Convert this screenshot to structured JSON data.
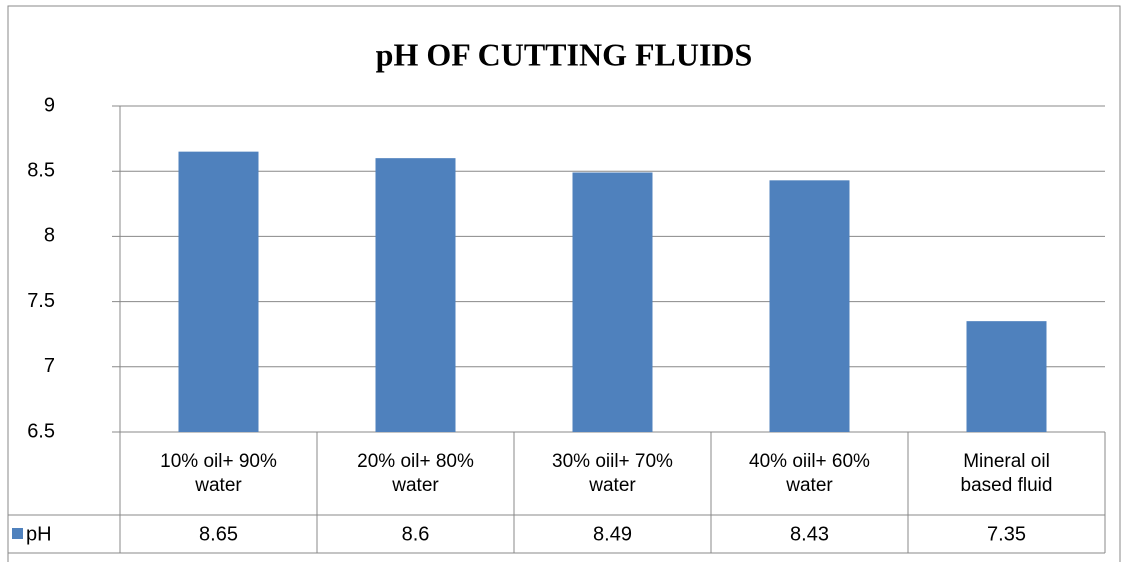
{
  "chart_data": {
    "type": "bar",
    "title": "pH OF  CUTTING FLUIDS",
    "categories": [
      "10% oil+ 90% water",
      "20% oil+ 80% water",
      "30% oiil+ 70% water",
      "40% oiil+ 60% water",
      "Mineral oil based fluid"
    ],
    "series": [
      {
        "name": "pH",
        "color": "#4f81bd",
        "values": [
          8.65,
          8.6,
          8.49,
          8.43,
          7.35
        ]
      }
    ],
    "ylim": [
      6.5,
      9
    ],
    "yticks": [
      6.5,
      7,
      7.5,
      8,
      8.5,
      9
    ],
    "grid": true,
    "data_table": true
  }
}
